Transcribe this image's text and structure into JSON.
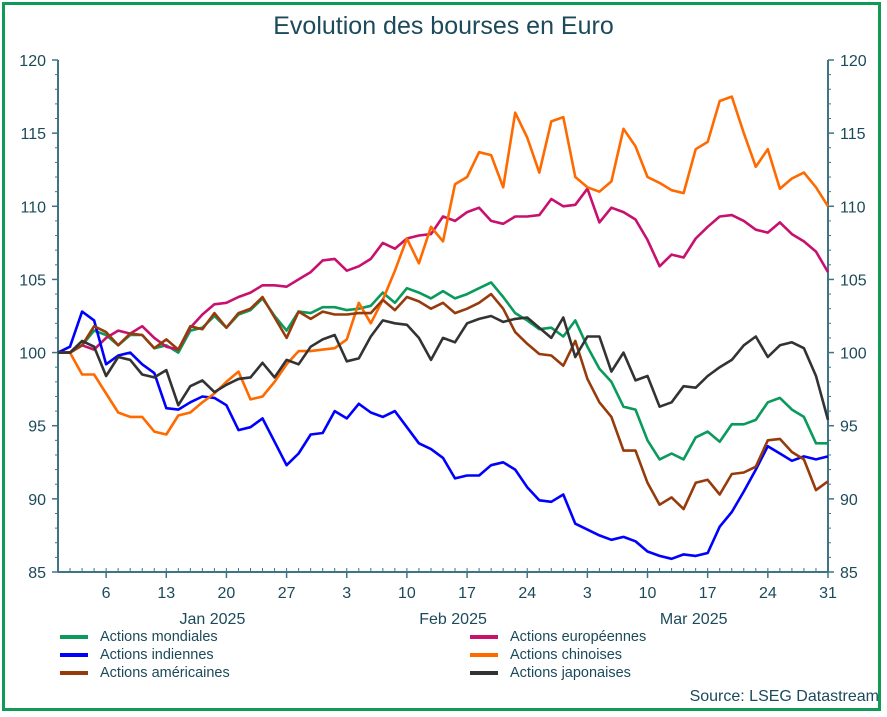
{
  "chart_data": {
    "type": "line",
    "title": "Evolution des bourses en Euro",
    "source": "Source: LSEG Datastream",
    "ylim": [
      85,
      120
    ],
    "yticks": [
      85,
      90,
      95,
      100,
      105,
      110,
      115,
      120
    ],
    "grid": false,
    "legend_position": "bottom",
    "xtick_labels": [
      {
        "date": "2025-01-06",
        "label": "6"
      },
      {
        "date": "2025-01-13",
        "label": "13"
      },
      {
        "date": "2025-01-20",
        "label": "20"
      },
      {
        "date": "2025-01-27",
        "label": "27"
      },
      {
        "date": "2025-02-03",
        "label": "3"
      },
      {
        "date": "2025-02-10",
        "label": "10"
      },
      {
        "date": "2025-02-17",
        "label": "17"
      },
      {
        "date": "2025-02-24",
        "label": "24"
      },
      {
        "date": "2025-03-03",
        "label": "3"
      },
      {
        "date": "2025-03-10",
        "label": "10"
      },
      {
        "date": "2025-03-17",
        "label": "17"
      },
      {
        "date": "2025-03-24",
        "label": "24"
      },
      {
        "date": "2025-03-31",
        "label": "31"
      }
    ],
    "month_labels": [
      {
        "date": "2025-01-20",
        "label": "Jan 2025"
      },
      {
        "date": "2025-02-17",
        "label": "Feb 2025"
      },
      {
        "date": "2025-03-17",
        "label": "Mar 2025"
      }
    ],
    "x": [
      "2024-12-31",
      "2025-01-01",
      "2025-01-02",
      "2025-01-03",
      "2025-01-06",
      "2025-01-07",
      "2025-01-08",
      "2025-01-09",
      "2025-01-10",
      "2025-01-13",
      "2025-01-14",
      "2025-01-15",
      "2025-01-16",
      "2025-01-17",
      "2025-01-20",
      "2025-01-21",
      "2025-01-22",
      "2025-01-23",
      "2025-01-24",
      "2025-01-27",
      "2025-01-28",
      "2025-01-29",
      "2025-01-30",
      "2025-01-31",
      "2025-02-03",
      "2025-02-04",
      "2025-02-05",
      "2025-02-06",
      "2025-02-07",
      "2025-02-10",
      "2025-02-11",
      "2025-02-12",
      "2025-02-13",
      "2025-02-14",
      "2025-02-17",
      "2025-02-18",
      "2025-02-19",
      "2025-02-20",
      "2025-02-21",
      "2025-02-24",
      "2025-02-25",
      "2025-02-26",
      "2025-02-27",
      "2025-02-28",
      "2025-03-03",
      "2025-03-04",
      "2025-03-05",
      "2025-03-06",
      "2025-03-07",
      "2025-03-10",
      "2025-03-11",
      "2025-03-12",
      "2025-03-13",
      "2025-03-14",
      "2025-03-17",
      "2025-03-18",
      "2025-03-19",
      "2025-03-20",
      "2025-03-21",
      "2025-03-24",
      "2025-03-25",
      "2025-03-26",
      "2025-03-27",
      "2025-03-28",
      "2025-03-31"
    ],
    "series": [
      {
        "name": "Actions mondiales",
        "color": "#0a9a5c",
        "values": [
          100,
          100,
          100.5,
          101.5,
          101.2,
          100.5,
          101.2,
          101.2,
          100.3,
          100.5,
          100.0,
          101.5,
          101.7,
          102.5,
          101.7,
          102.6,
          102.9,
          103.7,
          102.5,
          101.5,
          102.8,
          102.7,
          103.1,
          103.1,
          102.9,
          103.0,
          103.2,
          104.1,
          103.4,
          104.4,
          104.1,
          103.7,
          104.2,
          103.7,
          104.0,
          104.4,
          104.8,
          103.8,
          102.7,
          102.2,
          101.6,
          101.7,
          101.1,
          102.2,
          100.4,
          98.9,
          98.0,
          96.3,
          96.1,
          94.0,
          92.7,
          93.1,
          92.7,
          94.2,
          94.6,
          93.9,
          95.1,
          95.1,
          95.4,
          96.6,
          96.9,
          96.1,
          95.6,
          93.8,
          93.8
        ]
      },
      {
        "name": "Actions européennes",
        "color": "#c8106e",
        "values": [
          100,
          100,
          100.5,
          100.2,
          101.0,
          101.5,
          101.3,
          101.8,
          101.0,
          100.4,
          100.2,
          101.7,
          102.6,
          103.3,
          103.4,
          103.8,
          104.1,
          104.6,
          104.6,
          104.5,
          105.0,
          105.5,
          106.3,
          106.4,
          105.6,
          105.9,
          106.4,
          107.5,
          107.1,
          107.8,
          108.0,
          108.1,
          109.3,
          109.0,
          109.6,
          109.9,
          109.0,
          108.8,
          109.3,
          109.3,
          109.4,
          110.5,
          110.0,
          110.1,
          111.2,
          108.9,
          109.9,
          109.6,
          109.1,
          107.7,
          105.9,
          106.7,
          106.5,
          107.8,
          108.6,
          109.3,
          109.4,
          109.0,
          108.4,
          108.2,
          108.9,
          108.1,
          107.6,
          106.9,
          105.5
        ]
      },
      {
        "name": "Actions indiennes",
        "color": "#0000ff",
        "values": [
          100,
          100.4,
          102.8,
          102.2,
          99.2,
          99.8,
          100.0,
          99.2,
          98.6,
          96.2,
          96.1,
          96.6,
          97.0,
          96.9,
          96.4,
          94.7,
          94.9,
          95.5,
          93.9,
          92.3,
          93.1,
          94.4,
          94.5,
          96.0,
          95.5,
          96.5,
          95.9,
          95.6,
          96.0,
          94.9,
          93.8,
          93.4,
          92.8,
          91.4,
          91.6,
          91.6,
          92.3,
          92.5,
          92.0,
          90.8,
          89.9,
          89.8,
          90.3,
          88.3,
          87.9,
          87.5,
          87.2,
          87.4,
          87.1,
          86.4,
          86.1,
          85.9,
          86.2,
          86.1,
          86.3,
          88.1,
          89.1,
          90.5,
          92.0,
          93.6,
          93.1,
          92.6,
          92.9,
          92.7,
          92.9
        ]
      },
      {
        "name": "Actions chinoises",
        "color": "#ff6a00",
        "values": [
          100,
          100,
          98.5,
          98.5,
          97.2,
          95.9,
          95.6,
          95.6,
          94.6,
          94.4,
          95.7,
          95.9,
          96.6,
          97.2,
          98.0,
          98.7,
          96.8,
          97.0,
          98.0,
          99.2,
          100.1,
          100.1,
          100.2,
          100.3,
          100.9,
          103.4,
          102.0,
          103.6,
          105.6,
          107.8,
          106.1,
          108.6,
          107.6,
          111.5,
          112.0,
          113.7,
          113.5,
          111.3,
          116.4,
          114.7,
          112.3,
          115.8,
          116.1,
          112.0,
          111.3,
          111.0,
          111.7,
          115.3,
          114.1,
          112.0,
          111.6,
          111.1,
          110.9,
          113.9,
          114.4,
          117.2,
          117.5,
          115.0,
          112.7,
          113.9,
          111.2,
          111.9,
          112.3,
          111.3,
          110.0
        ]
      },
      {
        "name": "Actions américaines",
        "color": "#963c0c",
        "values": [
          100,
          100,
          100.5,
          101.8,
          101.4,
          100.5,
          101.3,
          101.2,
          100.3,
          100.9,
          100.2,
          101.8,
          101.6,
          102.7,
          101.7,
          102.7,
          103.0,
          103.8,
          102.4,
          101.0,
          102.8,
          102.3,
          102.8,
          102.6,
          102.6,
          102.7,
          102.7,
          103.6,
          102.9,
          103.8,
          103.5,
          103.0,
          103.4,
          102.7,
          103.0,
          103.4,
          104.0,
          103.0,
          101.4,
          100.6,
          99.9,
          99.8,
          99.1,
          100.8,
          98.2,
          96.6,
          95.6,
          93.3,
          93.3,
          91.1,
          89.6,
          90.1,
          89.3,
          91.1,
          91.3,
          90.3,
          91.7,
          91.8,
          92.2,
          94.0,
          94.1,
          93.2,
          92.7,
          90.6,
          91.2
        ]
      },
      {
        "name": "Actions japonaises",
        "color": "#333333",
        "values": [
          100,
          100,
          100.8,
          100.4,
          98.4,
          99.7,
          99.5,
          98.5,
          98.3,
          98.8,
          96.4,
          97.7,
          98.1,
          97.3,
          97.8,
          98.2,
          98.3,
          99.3,
          98.3,
          99.5,
          99.2,
          100.4,
          100.9,
          101.2,
          99.4,
          99.6,
          101.1,
          102.2,
          102.0,
          101.9,
          101.0,
          99.5,
          101.0,
          100.7,
          102.0,
          102.3,
          102.5,
          102.1,
          102.3,
          102.4,
          101.7,
          101.0,
          102.4,
          99.7,
          101.1,
          101.1,
          98.7,
          100.0,
          98.1,
          98.4,
          96.3,
          96.6,
          97.7,
          97.6,
          98.4,
          99.0,
          99.5,
          100.5,
          101.1,
          99.7,
          100.5,
          100.7,
          100.3,
          98.4,
          95.4
        ]
      }
    ]
  }
}
